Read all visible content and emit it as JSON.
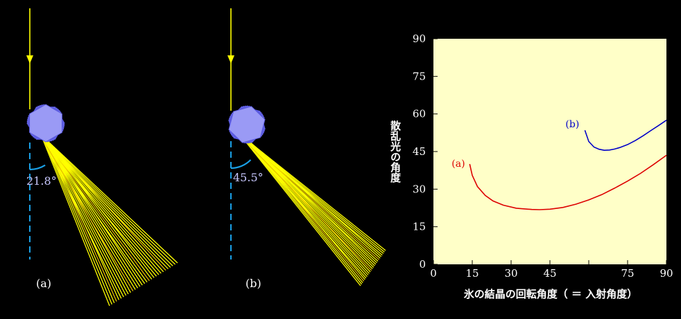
{
  "panels": [
    {
      "label": "(a)",
      "angle_label": "21.8°",
      "scatter_angle_deg": 21.8
    },
    {
      "label": "(b)",
      "angle_label": "45.5°",
      "scatter_angle_deg": 45.5
    }
  ],
  "colors": {
    "background": "#000000",
    "ray": "#ffff00",
    "crystal_fill": "#9a9af5",
    "crystal_edge": "#5a5ae0",
    "reference_line": "#1aa0e6",
    "plot_bg": "#ffffc8",
    "series_a": "#dd0000",
    "series_b": "#0000c8"
  },
  "icons": {
    "crystal": "hexagonal-ice-crystal-icon",
    "arrow": "arrow-down-icon"
  },
  "chart_data": {
    "type": "line",
    "title": "",
    "xlabel": "氷の結晶の回転角度（ ＝ 入射角度）",
    "ylabel": "散乱光の角度",
    "xlim": [
      0,
      90
    ],
    "ylim": [
      0,
      90
    ],
    "xticks": [
      "0",
      "15",
      "30",
      "45",
      "75",
      "90"
    ],
    "yticks": [
      "0",
      "15",
      "30",
      "45",
      "60",
      "75",
      "90"
    ],
    "xtick_values": [
      0,
      15,
      30,
      45,
      75,
      90
    ],
    "ytick_values": [
      0,
      15,
      30,
      45,
      60,
      75,
      90
    ],
    "grid": false,
    "series": [
      {
        "name": "(a)",
        "x": [
          14,
          15,
          17,
          20,
          23,
          27,
          32,
          38,
          41,
          45,
          50,
          55,
          60,
          65,
          70,
          75,
          80,
          85,
          90
        ],
        "y": [
          40,
          35.5,
          31,
          27.5,
          25.3,
          23.6,
          22.4,
          21.9,
          21.8,
          22,
          22.7,
          24,
          25.7,
          27.8,
          30.4,
          33.2,
          36.3,
          39.8,
          43.5
        ]
      },
      {
        "name": "(b)",
        "x": [
          58.5,
          60,
          62,
          64,
          66,
          68,
          70,
          72,
          75,
          78,
          81,
          84,
          87,
          90
        ],
        "y": [
          53.5,
          49,
          46.8,
          45.9,
          45.5,
          45.6,
          46,
          46.6,
          47.8,
          49.4,
          51.3,
          53.4,
          55.4,
          57.5
        ]
      }
    ]
  }
}
